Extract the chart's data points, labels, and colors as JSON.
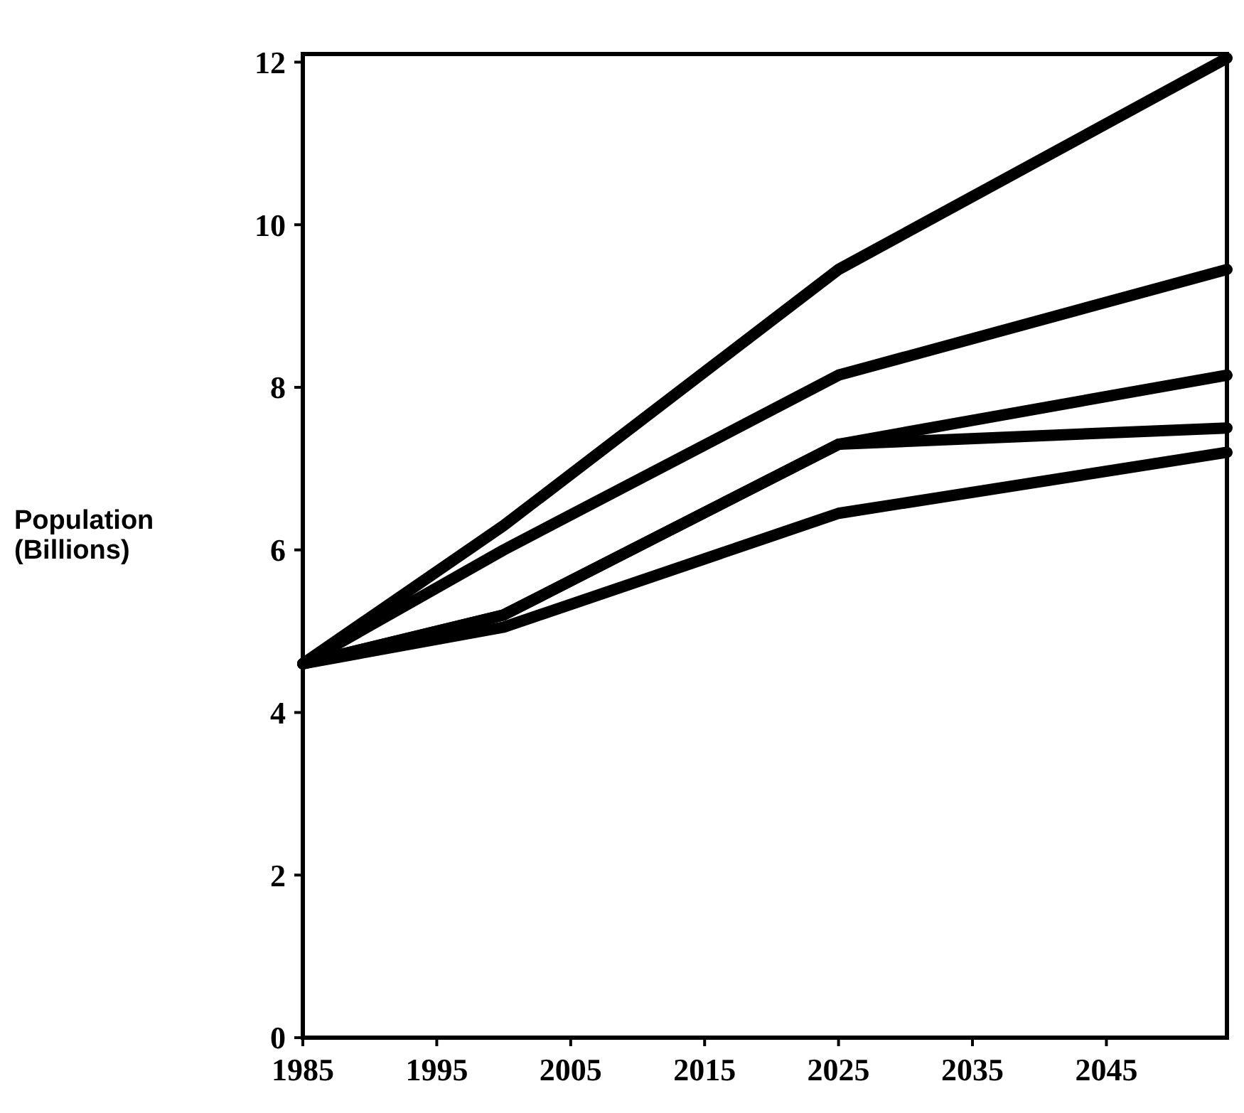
{
  "chart_data": {
    "type": "line",
    "ylabel": "Population\n(Billions)",
    "x": [
      1985,
      2000,
      2025,
      2054
    ],
    "xlim": [
      1985,
      2054
    ],
    "ylim": [
      0,
      12.1
    ],
    "xticks": [
      1985,
      1995,
      2005,
      2015,
      2025,
      2035,
      2045
    ],
    "yticks": [
      0,
      2,
      4,
      6,
      8,
      10,
      12
    ],
    "grid": false,
    "marker": "none",
    "line_style": "solid",
    "series": [
      {
        "color": "#000000",
        "values": [
          4.6,
          6.3,
          9.45,
          12.05
        ]
      },
      {
        "color": "#000000",
        "values": [
          4.6,
          6.0,
          8.15,
          9.45
        ]
      },
      {
        "color": "#000000",
        "values": [
          4.6,
          5.2,
          7.3,
          8.15
        ]
      },
      {
        "color": "#000000",
        "values": [
          4.6,
          5.2,
          7.3,
          7.5
        ]
      },
      {
        "color": "#000000",
        "values": [
          4.6,
          5.05,
          6.45,
          7.2
        ]
      }
    ]
  }
}
